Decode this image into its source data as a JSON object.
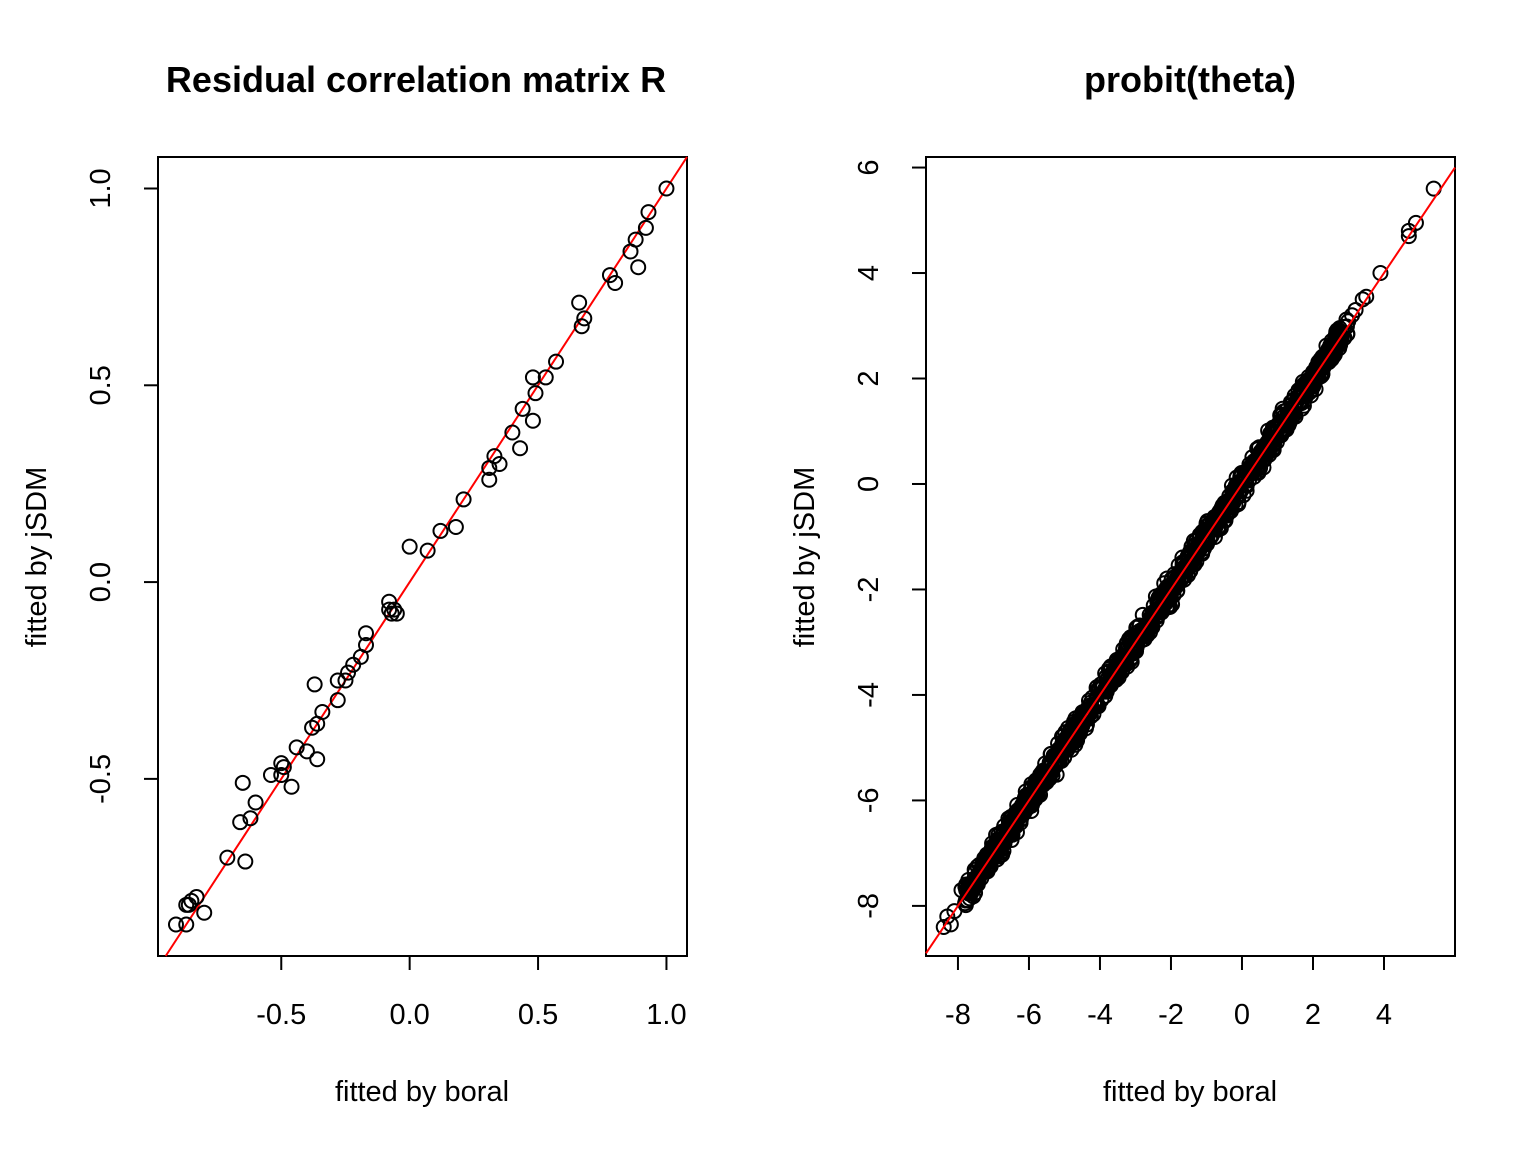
{
  "chart_data": [
    {
      "type": "scatter",
      "title": "Residual correlation matrix R",
      "xlabel": "fitted by boral",
      "ylabel": "fitted by jSDM",
      "xlim": [
        -0.98,
        1.08
      ],
      "ylim": [
        -0.95,
        1.08
      ],
      "xticks": [
        -0.5,
        0.0,
        0.5,
        1.0
      ],
      "xtick_labels": [
        "-0.5",
        "0.0",
        "0.5",
        "1.0"
      ],
      "yticks": [
        -0.5,
        0.0,
        0.5,
        1.0
      ],
      "ytick_labels": [
        "-0.5",
        "0.0",
        "0.5",
        "1.0"
      ],
      "reference_line": {
        "intercept": 0,
        "slope": 1,
        "color": "#ff0000"
      },
      "points": [
        {
          "x": 1.0,
          "y": 1.0
        },
        {
          "x": 0.93,
          "y": 0.94
        },
        {
          "x": 0.92,
          "y": 0.9
        },
        {
          "x": 0.88,
          "y": 0.87
        },
        {
          "x": 0.86,
          "y": 0.84
        },
        {
          "x": 0.89,
          "y": 0.8
        },
        {
          "x": 0.78,
          "y": 0.78
        },
        {
          "x": 0.8,
          "y": 0.76
        },
        {
          "x": 0.66,
          "y": 0.71
        },
        {
          "x": 0.68,
          "y": 0.67
        },
        {
          "x": 0.67,
          "y": 0.65
        },
        {
          "x": 0.57,
          "y": 0.56
        },
        {
          "x": 0.53,
          "y": 0.52
        },
        {
          "x": 0.48,
          "y": 0.52
        },
        {
          "x": 0.49,
          "y": 0.48
        },
        {
          "x": 0.44,
          "y": 0.44
        },
        {
          "x": 0.48,
          "y": 0.41
        },
        {
          "x": 0.4,
          "y": 0.38
        },
        {
          "x": 0.43,
          "y": 0.34
        },
        {
          "x": 0.33,
          "y": 0.32
        },
        {
          "x": 0.35,
          "y": 0.3
        },
        {
          "x": 0.31,
          "y": 0.29
        },
        {
          "x": 0.31,
          "y": 0.26
        },
        {
          "x": 0.21,
          "y": 0.21
        },
        {
          "x": 0.18,
          "y": 0.14
        },
        {
          "x": 0.12,
          "y": 0.13
        },
        {
          "x": 0.0,
          "y": 0.09
        },
        {
          "x": 0.07,
          "y": 0.08
        },
        {
          "x": -0.08,
          "y": -0.05
        },
        {
          "x": -0.08,
          "y": -0.07
        },
        {
          "x": -0.06,
          "y": -0.07
        },
        {
          "x": -0.05,
          "y": -0.08
        },
        {
          "x": -0.07,
          "y": -0.08
        },
        {
          "x": -0.17,
          "y": -0.13
        },
        {
          "x": -0.17,
          "y": -0.16
        },
        {
          "x": -0.19,
          "y": -0.19
        },
        {
          "x": -0.22,
          "y": -0.21
        },
        {
          "x": -0.24,
          "y": -0.23
        },
        {
          "x": -0.25,
          "y": -0.25
        },
        {
          "x": -0.28,
          "y": -0.25
        },
        {
          "x": -0.37,
          "y": -0.26
        },
        {
          "x": -0.28,
          "y": -0.3
        },
        {
          "x": -0.34,
          "y": -0.33
        },
        {
          "x": -0.36,
          "y": -0.36
        },
        {
          "x": -0.38,
          "y": -0.37
        },
        {
          "x": -0.44,
          "y": -0.42
        },
        {
          "x": -0.4,
          "y": -0.43
        },
        {
          "x": -0.36,
          "y": -0.45
        },
        {
          "x": -0.5,
          "y": -0.46
        },
        {
          "x": -0.49,
          "y": -0.47
        },
        {
          "x": -0.54,
          "y": -0.49
        },
        {
          "x": -0.5,
          "y": -0.49
        },
        {
          "x": -0.46,
          "y": -0.52
        },
        {
          "x": -0.65,
          "y": -0.51
        },
        {
          "x": -0.6,
          "y": -0.56
        },
        {
          "x": -0.62,
          "y": -0.6
        },
        {
          "x": -0.66,
          "y": -0.61
        },
        {
          "x": -0.71,
          "y": -0.7
        },
        {
          "x": -0.64,
          "y": -0.71
        },
        {
          "x": -0.83,
          "y": -0.8
        },
        {
          "x": -0.85,
          "y": -0.81
        },
        {
          "x": -0.86,
          "y": -0.82
        },
        {
          "x": -0.87,
          "y": -0.82
        },
        {
          "x": -0.8,
          "y": -0.84
        },
        {
          "x": -0.91,
          "y": -0.87
        },
        {
          "x": -0.87,
          "y": -0.87
        }
      ]
    },
    {
      "type": "scatter",
      "title": "probit(theta)",
      "xlabel": "fitted by boral",
      "ylabel": "fitted by jSDM",
      "xlim": [
        -8.9,
        6.0
      ],
      "ylim": [
        -8.95,
        6.2
      ],
      "xticks": [
        -8,
        -6,
        -4,
        -2,
        0,
        2,
        4
      ],
      "xtick_labels": [
        "-8",
        "-6",
        "-4",
        "-2",
        "0",
        "2",
        "4"
      ],
      "yticks": [
        -8,
        -6,
        -4,
        -2,
        0,
        2,
        4,
        6
      ],
      "ytick_labels": [
        "-8",
        "-6",
        "-4",
        "-2",
        "0",
        "2",
        "4",
        "6"
      ],
      "reference_line": {
        "intercept": 0,
        "slope": 1,
        "color": "#ff0000"
      },
      "dense_cloud": {
        "from": -7.8,
        "to": 3.0,
        "spread": 0.28,
        "note_points": 1200
      },
      "points": [
        {
          "x": 5.4,
          "y": 5.6
        },
        {
          "x": 4.9,
          "y": 4.95
        },
        {
          "x": 4.7,
          "y": 4.8
        },
        {
          "x": 4.7,
          "y": 4.7
        },
        {
          "x": 3.9,
          "y": 4.0
        },
        {
          "x": 3.5,
          "y": 3.55
        },
        {
          "x": 3.4,
          "y": 3.5
        },
        {
          "x": 3.2,
          "y": 3.3
        },
        {
          "x": 3.1,
          "y": 3.2
        },
        {
          "x": -8.4,
          "y": -8.4
        },
        {
          "x": -8.2,
          "y": -8.35
        },
        {
          "x": -8.3,
          "y": -8.2
        },
        {
          "x": -8.1,
          "y": -8.1
        },
        {
          "x": -7.8,
          "y": -7.95
        },
        {
          "x": -7.9,
          "y": -7.7
        },
        {
          "x": -7.6,
          "y": -7.6
        }
      ]
    }
  ]
}
